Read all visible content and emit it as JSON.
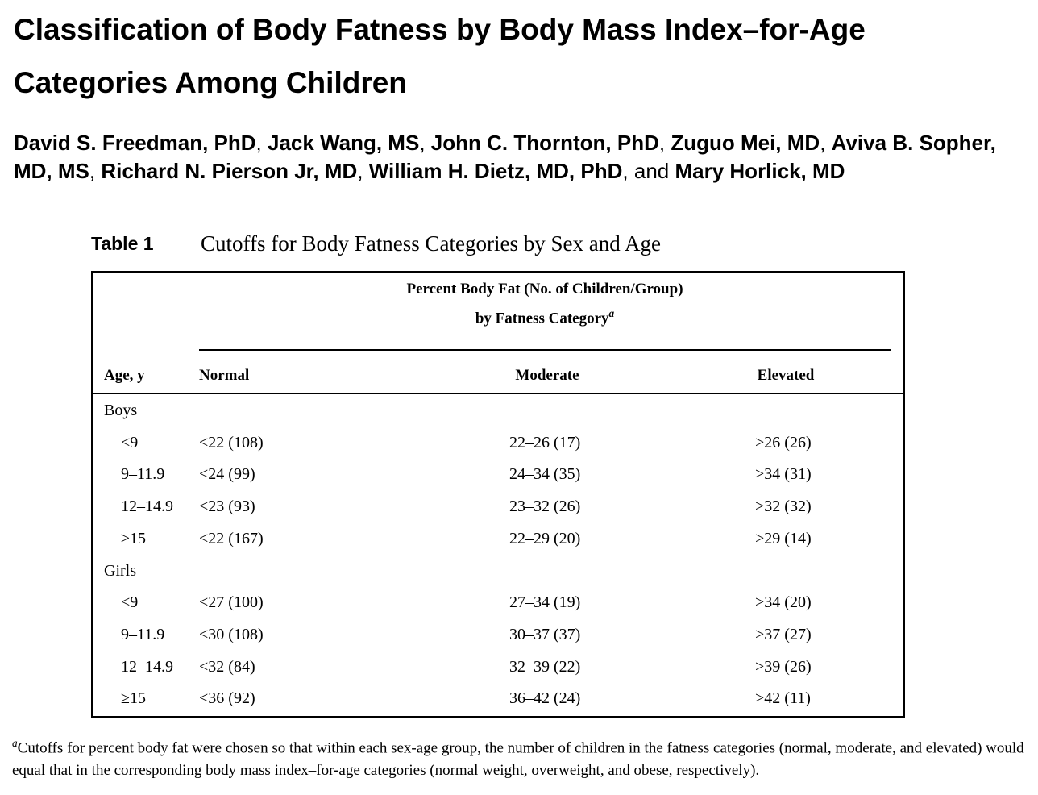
{
  "title": "Classification of Body Fatness by Body Mass Index–for-Age Categories Among Children",
  "authors": {
    "names": [
      "David S. Freedman, PhD",
      "Jack Wang, MS",
      "John C. Thornton, PhD",
      "Zuguo Mei, MD",
      "Aviva B. Sopher, MD, MS",
      "Richard N. Pierson Jr, MD",
      "William H. Dietz, MD, PhD",
      "Mary Horlick, MD"
    ],
    "separator": ",",
    "conjunction": "and"
  },
  "table": {
    "label": "Table 1",
    "caption": "Cutoffs for Body Fatness Categories by Sex and Age",
    "spanning_header": {
      "line1": "Percent Body Fat (No. of Children/Group)",
      "line2": "by Fatness Category",
      "note_mark": "a"
    },
    "columns": [
      "Age, y",
      "Normal",
      "Moderate",
      "Elevated"
    ],
    "groups": [
      {
        "label": "Boys",
        "rows": [
          [
            "<9",
            "<22 (108)",
            "22–26 (17)",
            ">26 (26)"
          ],
          [
            "9–11.9",
            "<24 (99)",
            "24–34 (35)",
            ">34 (31)"
          ],
          [
            "12–14.9",
            "<23 (93)",
            "23–32 (26)",
            ">32 (32)"
          ],
          [
            "≥15",
            "<22 (167)",
            "22–29 (20)",
            ">29 (14)"
          ]
        ]
      },
      {
        "label": "Girls",
        "rows": [
          [
            "<9",
            "<27 (100)",
            "27–34 (19)",
            ">34 (20)"
          ],
          [
            "9–11.9",
            "<30 (108)",
            "30–37 (37)",
            ">37 (27)"
          ],
          [
            "12–14.9",
            "<32 (84)",
            "32–39 (22)",
            ">39 (26)"
          ],
          [
            "≥15",
            "<36 (92)",
            "36–42 (24)",
            ">42 (11)"
          ]
        ]
      }
    ],
    "footnote": {
      "mark": "a",
      "text": "Cutoffs for percent body fat were chosen so that within each sex-age group, the number of children in the fatness categories (normal, moderate, and elevated) would equal that in the corresponding body mass index–for-age categories (normal weight, overweight, and obese, respectively)."
    }
  }
}
